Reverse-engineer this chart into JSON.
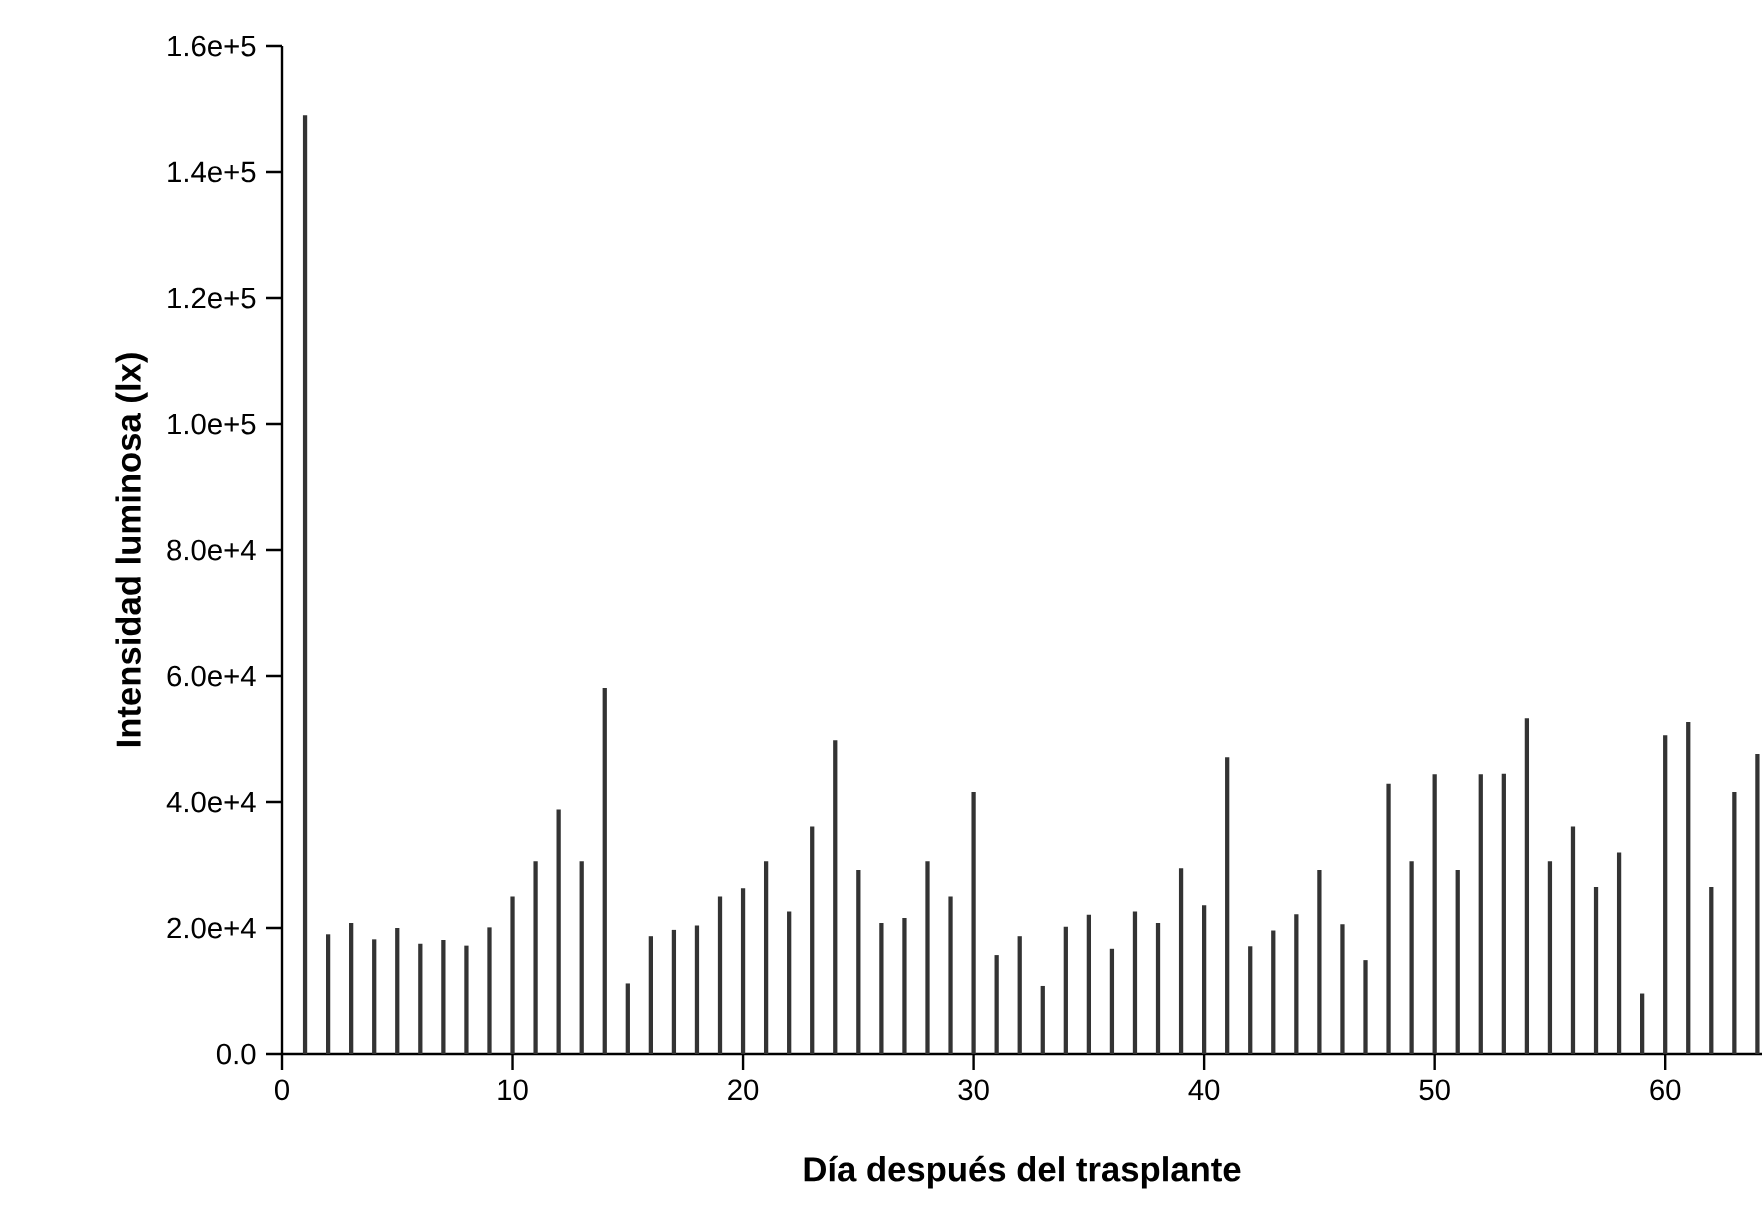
{
  "chart_data": {
    "type": "bar",
    "xlabel": "Día después del trasplante",
    "ylabel": "Intensidad luminosa (lx)",
    "x": [
      1,
      2,
      3,
      4,
      5,
      6,
      7,
      8,
      9,
      10,
      11,
      12,
      13,
      14,
      15,
      16,
      17,
      18,
      19,
      20,
      21,
      22,
      23,
      24,
      25,
      26,
      27,
      28,
      29,
      30,
      31,
      32,
      33,
      34,
      35,
      36,
      37,
      38,
      39,
      40,
      41,
      42,
      43,
      44,
      45,
      46,
      47,
      48,
      49,
      50,
      51,
      52,
      53,
      54,
      55,
      56,
      57,
      58,
      59,
      60,
      61,
      62,
      63,
      64
    ],
    "values": [
      149000,
      19000,
      20800,
      18200,
      20000,
      17500,
      18100,
      17200,
      20100,
      25000,
      30600,
      38800,
      30600,
      58100,
      11200,
      18700,
      19700,
      20400,
      25000,
      26300,
      30600,
      22600,
      36100,
      49800,
      29200,
      20800,
      21600,
      30600,
      25000,
      41600,
      15700,
      18700,
      10800,
      20200,
      22100,
      16700,
      22600,
      20800,
      29500,
      23600,
      47100,
      17100,
      19600,
      22200,
      29200,
      20600,
      14900,
      42900,
      30600,
      44400,
      29200,
      44400,
      44500,
      53300,
      30600,
      36100,
      26500,
      32000,
      9600,
      50600,
      52700,
      26500,
      41600,
      47600
    ],
    "color": "#333333",
    "xlim": [
      0,
      64.2
    ],
    "xticks": [
      0,
      10,
      20,
      30,
      40,
      50,
      60
    ],
    "ylim": [
      0,
      160000
    ],
    "yticks": [
      {
        "value": 0,
        "label": "0.0"
      },
      {
        "value": 20000,
        "label": "2.0e+4"
      },
      {
        "value": 40000,
        "label": "4.0e+4"
      },
      {
        "value": 60000,
        "label": "6.0e+4"
      },
      {
        "value": 80000,
        "label": "8.0e+4"
      },
      {
        "value": 100000,
        "label": "1.0e+5"
      },
      {
        "value": 120000,
        "label": "1.2e+5"
      },
      {
        "value": 140000,
        "label": "1.4e+5"
      },
      {
        "value": 160000,
        "label": "1.6e+5"
      }
    ]
  }
}
